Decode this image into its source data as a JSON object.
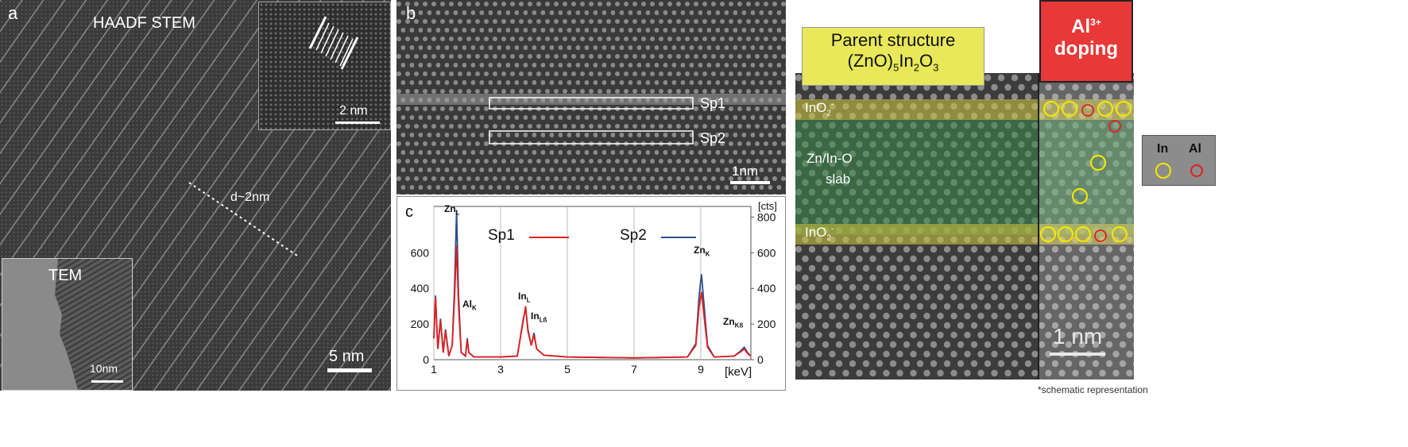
{
  "panel_a": {
    "letter": "a",
    "title": "HAADF STEM",
    "inset_scale": "2 nm",
    "spacing_label": "d~2nm",
    "tem_label": "TEM",
    "tem_scale": "10nm",
    "scale": "5 nm"
  },
  "panel_b": {
    "letter": "b",
    "sp1": "Sp1",
    "sp2": "Sp2",
    "scale": "1nm"
  },
  "panel_c": {
    "letter": "c",
    "unit_top": "[cts]",
    "unit_x": "[keV]",
    "peaks": {
      "zn_l": "Zn",
      "zn_l_sub": "L",
      "al_k": "Al",
      "al_k_sub": "K",
      "in_l": "In",
      "in_l_sub": "L",
      "in_lb": "In",
      "in_lb_sub": "Lß",
      "zn_k": "Zn",
      "zn_k_sub": "K",
      "zn_kb": "Zn",
      "zn_kb_sub": "Kß"
    }
  },
  "chart_data": {
    "type": "line",
    "title": "",
    "xlabel": "[keV]",
    "ylabel": "[cts]",
    "xlim": [
      1,
      10.5
    ],
    "ylim": [
      0,
      860
    ],
    "x_ticks": [
      "1",
      "3",
      "5",
      "7",
      "9"
    ],
    "y_ticks_left": [
      "0",
      "200",
      "400",
      "600"
    ],
    "y_ticks_right": [
      "0",
      "200",
      "400",
      "600",
      "800"
    ],
    "series": [
      {
        "name": "Sp1",
        "color": "#e02020",
        "points": [
          [
            1.0,
            120
          ],
          [
            1.05,
            350
          ],
          [
            1.12,
            60
          ],
          [
            1.2,
            220
          ],
          [
            1.28,
            40
          ],
          [
            1.35,
            160
          ],
          [
            1.45,
            20
          ],
          [
            1.55,
            80
          ],
          [
            1.62,
            340
          ],
          [
            1.68,
            640
          ],
          [
            1.74,
            300
          ],
          [
            1.82,
            40
          ],
          [
            1.95,
            20
          ],
          [
            2.0,
            110
          ],
          [
            2.05,
            40
          ],
          [
            2.2,
            15
          ],
          [
            3.0,
            15
          ],
          [
            3.5,
            20
          ],
          [
            3.68,
            220
          ],
          [
            3.75,
            300
          ],
          [
            3.82,
            160
          ],
          [
            3.92,
            80
          ],
          [
            4.0,
            140
          ],
          [
            4.08,
            60
          ],
          [
            4.3,
            25
          ],
          [
            5.0,
            15
          ],
          [
            7.0,
            10
          ],
          [
            8.6,
            15
          ],
          [
            8.85,
            80
          ],
          [
            8.95,
            300
          ],
          [
            9.02,
            380
          ],
          [
            9.1,
            240
          ],
          [
            9.2,
            70
          ],
          [
            9.4,
            15
          ],
          [
            10.0,
            20
          ],
          [
            10.2,
            45
          ],
          [
            10.3,
            60
          ],
          [
            10.4,
            35
          ],
          [
            10.5,
            20
          ]
        ]
      },
      {
        "name": "Sp2",
        "color": "#2c4f8a",
        "points": [
          [
            1.0,
            120
          ],
          [
            1.05,
            360
          ],
          [
            1.12,
            60
          ],
          [
            1.2,
            230
          ],
          [
            1.28,
            40
          ],
          [
            1.35,
            170
          ],
          [
            1.45,
            20
          ],
          [
            1.55,
            80
          ],
          [
            1.62,
            400
          ],
          [
            1.68,
            840
          ],
          [
            1.74,
            360
          ],
          [
            1.82,
            40
          ],
          [
            1.95,
            20
          ],
          [
            2.0,
            120
          ],
          [
            2.05,
            40
          ],
          [
            2.2,
            15
          ],
          [
            3.0,
            15
          ],
          [
            3.5,
            20
          ],
          [
            3.68,
            230
          ],
          [
            3.75,
            290
          ],
          [
            3.82,
            170
          ],
          [
            3.92,
            80
          ],
          [
            4.0,
            150
          ],
          [
            4.08,
            60
          ],
          [
            4.3,
            25
          ],
          [
            5.0,
            15
          ],
          [
            7.0,
            10
          ],
          [
            8.6,
            15
          ],
          [
            8.85,
            90
          ],
          [
            8.95,
            360
          ],
          [
            9.02,
            480
          ],
          [
            9.1,
            300
          ],
          [
            9.2,
            80
          ],
          [
            9.4,
            15
          ],
          [
            10.0,
            20
          ],
          [
            10.2,
            50
          ],
          [
            10.3,
            70
          ],
          [
            10.4,
            40
          ],
          [
            10.5,
            20
          ]
        ]
      }
    ]
  },
  "panel_d": {
    "parent_line1": "Parent structure",
    "parent_line2": "(ZnO)",
    "parent_sub1": "5",
    "parent_mid": "In",
    "parent_sub2": "2",
    "parent_end": "O",
    "parent_sub3": "3",
    "al_text": "Al",
    "al_sup": "3+",
    "doping": "doping",
    "ino2": "InO",
    "ino2_sub": "2",
    "ino2_sup": "-",
    "slab_line1": "Zn/In-O",
    "slab_line2": "slab",
    "scale": "1 nm",
    "legend_in": "In",
    "legend_al": "Al",
    "footnote": "*schematic representation",
    "colors": {
      "yellow_box": "#e8e85a",
      "red_box": "#e83838",
      "in_ring": "#f2e600",
      "al_ring": "#e02020"
    }
  }
}
